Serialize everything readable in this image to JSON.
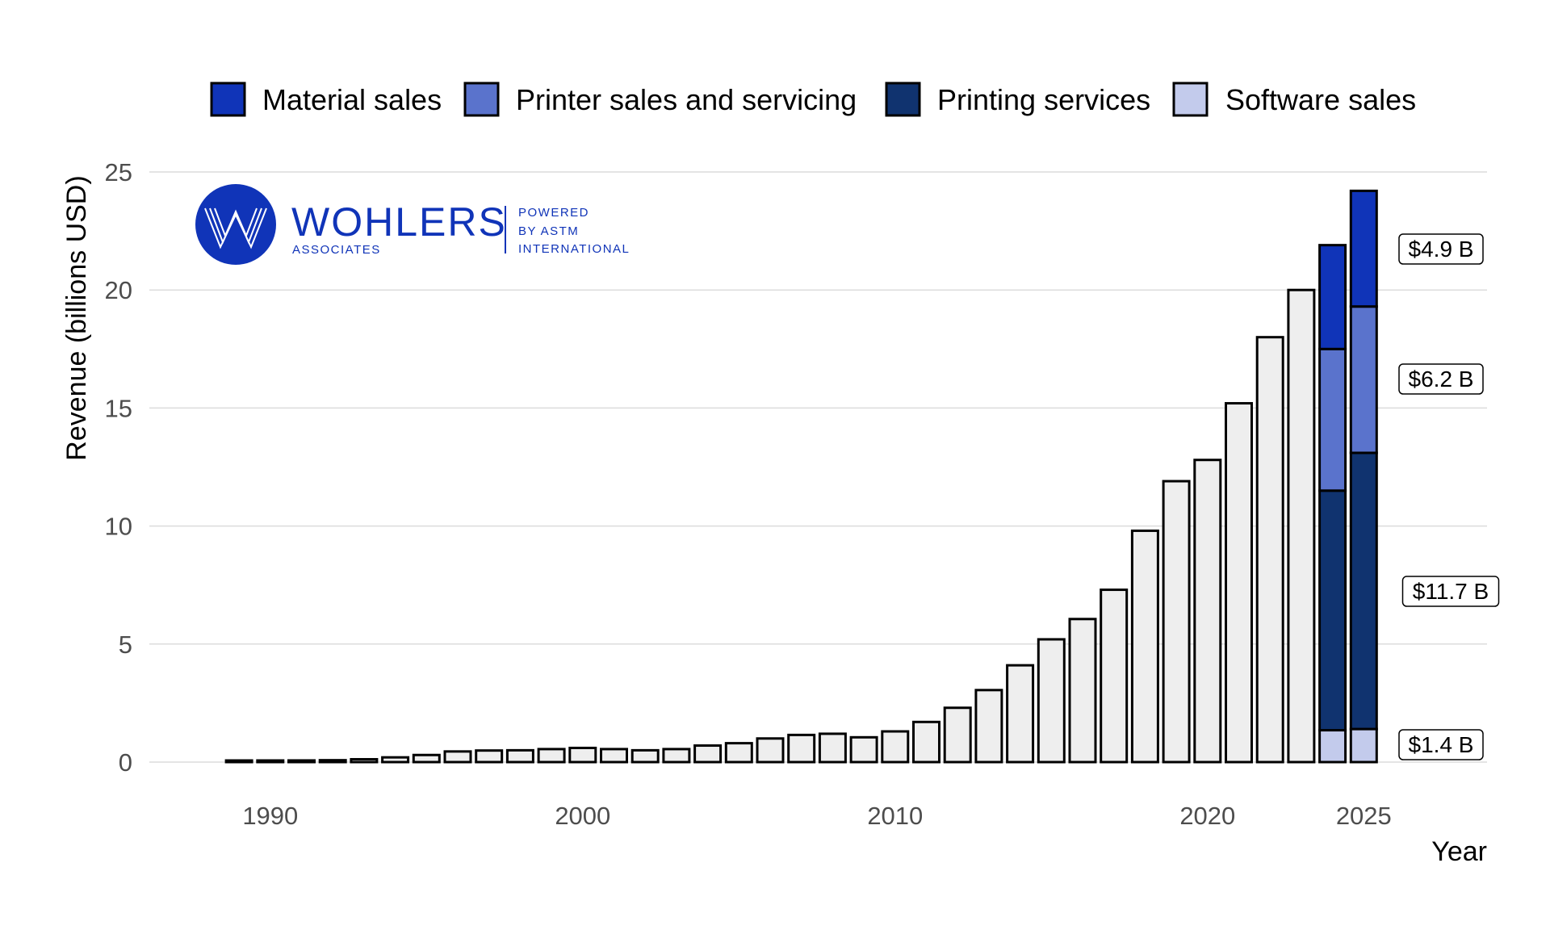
{
  "chart_data": {
    "type": "bar",
    "stacked": true,
    "xlabel": "Year",
    "ylabel": "Revenue (billions USD)",
    "ylim": [
      0,
      25
    ],
    "yticks": [
      0,
      5,
      10,
      15,
      20,
      25
    ],
    "xticks": [
      1990,
      2000,
      2010,
      2020,
      2025
    ],
    "grid": "horizontal",
    "legend_position": "top",
    "total_color": "#eeeeee",
    "years": [
      1989,
      1990,
      1991,
      1992,
      1993,
      1994,
      1995,
      1996,
      1997,
      1998,
      1999,
      2000,
      2001,
      2002,
      2003,
      2004,
      2005,
      2006,
      2007,
      2008,
      2009,
      2010,
      2011,
      2012,
      2013,
      2014,
      2015,
      2016,
      2017,
      2018,
      2019,
      2020,
      2021,
      2022,
      2023
    ],
    "totals": [
      0.05,
      0.06,
      0.07,
      0.08,
      0.12,
      0.2,
      0.3,
      0.45,
      0.49,
      0.5,
      0.55,
      0.6,
      0.55,
      0.5,
      0.55,
      0.7,
      0.8,
      1.0,
      1.15,
      1.2,
      1.05,
      1.3,
      1.7,
      2.3,
      3.05,
      4.1,
      5.2,
      6.06,
      7.3,
      9.8,
      11.9,
      12.8,
      15.2,
      18.0,
      20.0
    ],
    "stacked_years": [
      2024,
      2025
    ],
    "series": [
      {
        "name": "Software sales",
        "color": "#c3cbec",
        "values": [
          1.35,
          1.4
        ]
      },
      {
        "name": "Printing services",
        "color": "#10336f",
        "values": [
          10.15,
          11.7
        ]
      },
      {
        "name": "Printer sales and servicing",
        "color": "#5a73cc",
        "values": [
          6.0,
          6.2
        ]
      },
      {
        "name": "Material sales",
        "color": "#1034b8",
        "values": [
          4.4,
          4.9
        ]
      }
    ],
    "legend_order": [
      "Material sales",
      "Printer sales and servicing",
      "Printing services",
      "Software sales"
    ],
    "annotations": [
      "$1.4 B",
      "$11.7 B",
      "$6.2 B",
      "$4.9 B"
    ]
  },
  "logo": {
    "name": "WOHLERS",
    "sub": "ASSOCIATES",
    "powered": [
      "POWERED",
      "BY ASTM",
      "INTERNATIONAL"
    ],
    "color": "#1034b8"
  }
}
